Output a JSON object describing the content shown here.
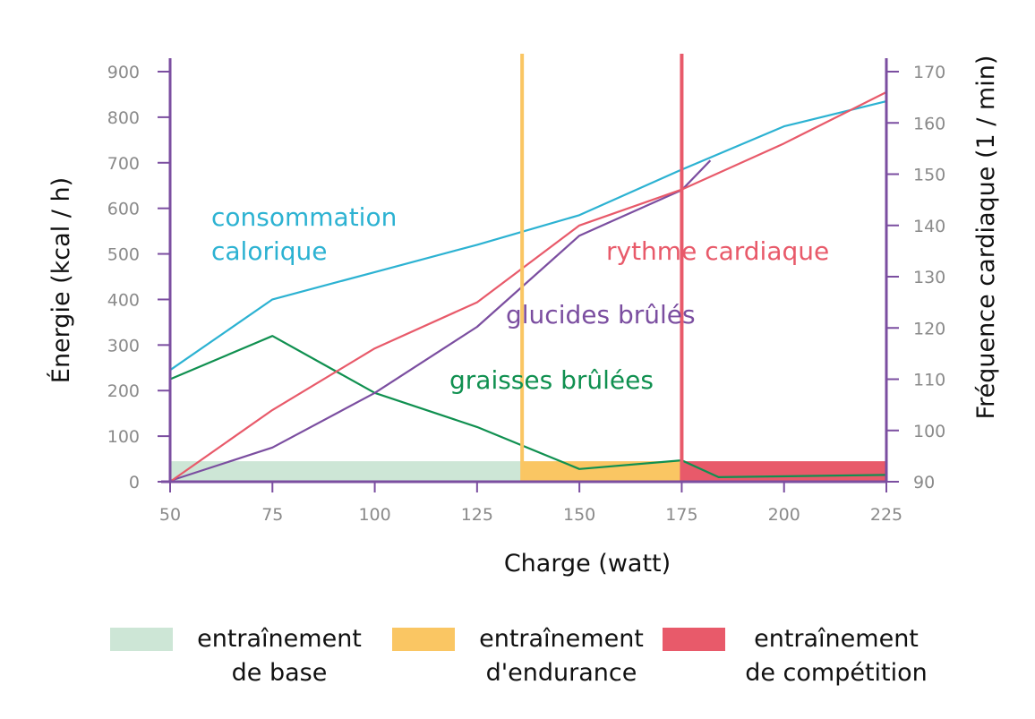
{
  "chart_data": {
    "type": "line",
    "xlabel": "Charge (watt)",
    "ylabel_left": "Énergie (kcal / h)",
    "ylabel_right": "Fréquence cardiaque (1 / min)",
    "x_ticks": [
      "50",
      "75",
      "100",
      "125",
      "150",
      "175",
      "200",
      "225"
    ],
    "y_left_ticks": [
      "0",
      "100",
      "200",
      "300",
      "400",
      "500",
      "600",
      "700",
      "800",
      "900"
    ],
    "y_right_ticks": [
      "90",
      "100",
      "110",
      "120",
      "130",
      "140",
      "150",
      "160",
      "170"
    ],
    "xlim": [
      50,
      225
    ],
    "ylim_left": [
      0,
      900
    ],
    "ylim_right": [
      90,
      170
    ],
    "zones": [
      {
        "from": 50,
        "to": 136,
        "color": "#cde6d6",
        "label_line1": "entraînement",
        "label_line2": "de base"
      },
      {
        "from": 136,
        "to": 175,
        "color": "#fac663",
        "label_line1": "entraînement",
        "label_line2": "d'endurance"
      },
      {
        "from": 175,
        "to": 225,
        "color": "#e85a6a",
        "label_line1": "entraînement",
        "label_line2": "de compétition"
      }
    ],
    "zone_height_kcal": 45,
    "thresholds": [
      {
        "x": 136,
        "color": "#fac663"
      },
      {
        "x": 175,
        "color": "#e85a6a"
      }
    ],
    "series": [
      {
        "name": "consommation calorique",
        "axis": "left",
        "color": "#2cb2d2",
        "x": [
          50,
          75,
          100,
          125,
          150,
          175,
          200,
          225
        ],
        "values": [
          245,
          400,
          460,
          520,
          585,
          685,
          780,
          835
        ]
      },
      {
        "name": "graisses brûlées",
        "axis": "left",
        "color": "#109050",
        "x": [
          50,
          75,
          100,
          125,
          150,
          175,
          184,
          225
        ],
        "values": [
          225,
          320,
          195,
          120,
          28,
          47,
          10,
          15
        ]
      },
      {
        "name": "glucides brûlés",
        "axis": "left",
        "color": "#7b4ea0",
        "x": [
          50,
          75,
          100,
          125,
          150,
          175,
          182
        ],
        "values": [
          2,
          75,
          195,
          340,
          540,
          640,
          705
        ]
      },
      {
        "name": "rythme cardiaque",
        "axis": "right",
        "color": "#e85a6a",
        "x": [
          50,
          75,
          100,
          125,
          150,
          175,
          200,
          225
        ],
        "values": [
          90,
          104,
          116,
          125,
          140,
          147,
          156,
          166
        ]
      }
    ],
    "annotations": [
      {
        "line1": "consommation",
        "line2": "calorique",
        "color": "#2cb2d2"
      },
      {
        "line1": "rythme cardiaque",
        "color": "#e85a6a"
      },
      {
        "line1": "glucides brûlés",
        "color": "#7b4ea0"
      },
      {
        "line1": "graisses brûlées",
        "color": "#109050"
      }
    ],
    "grid": false,
    "legend_position": "bottom"
  },
  "axis_color": "#7b4ea0"
}
